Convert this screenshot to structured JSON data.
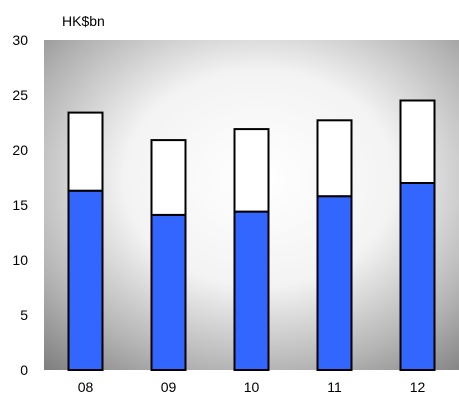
{
  "chart_data": {
    "type": "bar",
    "stacked": true,
    "unit_label": "HK$bn",
    "categories": [
      "08",
      "09",
      "10",
      "11",
      "12"
    ],
    "series": [
      {
        "color": "#3366ff",
        "values": [
          16.3,
          14.1,
          14.4,
          15.8,
          17.0
        ]
      },
      {
        "color": "#ffffff",
        "values": [
          7.1,
          6.8,
          7.5,
          6.9,
          7.5
        ]
      }
    ],
    "ylim": [
      0,
      30
    ],
    "yticks": [
      0,
      5,
      10,
      15,
      20,
      25,
      30
    ],
    "grid": false,
    "legend": "none",
    "background": "radial-gradient-grey"
  }
}
